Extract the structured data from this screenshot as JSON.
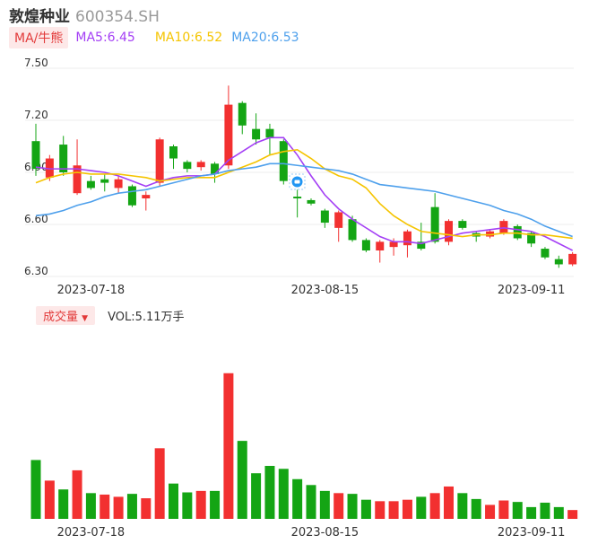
{
  "header": {
    "name": "敦煌种业",
    "code": "600354.SH"
  },
  "legend": {
    "ma_label": "MA/牛熊",
    "ma5": "MA5:6.45",
    "ma10": "MA10:6.52",
    "ma20": "MA20:6.53"
  },
  "volume_legend": {
    "label": "成交量",
    "value": "VOL:5.11万手"
  },
  "colors": {
    "up": "#f23030",
    "down": "#14a514",
    "ma5": "#a43ff5",
    "ma10": "#f5c400",
    "ma20": "#4ea0ec",
    "grid": "#eeeeee"
  },
  "chart_data": [
    {
      "type": "candlestick",
      "y_ticks": [
        "7.50",
        "7.20",
        "6.90",
        "6.60",
        "6.30"
      ],
      "ylim": [
        6.3,
        7.5
      ],
      "x_tick_labels": [
        {
          "index": 4,
          "label": "2023-07-18"
        },
        {
          "index": 21,
          "label": "2023-08-15"
        },
        {
          "index": 36,
          "label": "2023-09-11"
        }
      ],
      "candles": [
        {
          "o": 7.08,
          "c": 6.92,
          "h": 7.18,
          "l": 6.88
        },
        {
          "o": 6.87,
          "c": 6.98,
          "h": 7.0,
          "l": 6.85
        },
        {
          "o": 7.06,
          "c": 6.9,
          "h": 7.11,
          "l": 6.88
        },
        {
          "o": 6.78,
          "c": 6.94,
          "h": 7.09,
          "l": 6.77
        },
        {
          "o": 6.85,
          "c": 6.81,
          "h": 6.88,
          "l": 6.8
        },
        {
          "o": 6.86,
          "c": 6.84,
          "h": 6.89,
          "l": 6.79
        },
        {
          "o": 6.81,
          "c": 6.86,
          "h": 6.88,
          "l": 6.78
        },
        {
          "o": 6.82,
          "c": 6.71,
          "h": 6.83,
          "l": 6.7
        },
        {
          "o": 6.75,
          "c": 6.77,
          "h": 6.79,
          "l": 6.68
        },
        {
          "o": 6.84,
          "c": 7.09,
          "h": 7.1,
          "l": 6.82
        },
        {
          "o": 7.05,
          "c": 6.98,
          "h": 7.06,
          "l": 6.92
        },
        {
          "o": 6.96,
          "c": 6.92,
          "h": 6.97,
          "l": 6.9
        },
        {
          "o": 6.93,
          "c": 6.96,
          "h": 6.97,
          "l": 6.91
        },
        {
          "o": 6.95,
          "c": 6.89,
          "h": 6.96,
          "l": 6.84
        },
        {
          "o": 6.94,
          "c": 7.29,
          "h": 7.4,
          "l": 6.92
        },
        {
          "o": 7.3,
          "c": 7.17,
          "h": 7.31,
          "l": 7.12
        },
        {
          "o": 7.15,
          "c": 7.09,
          "h": 7.24,
          "l": 7.06
        },
        {
          "o": 7.15,
          "c": 7.1,
          "h": 7.18,
          "l": 7.0
        },
        {
          "o": 7.08,
          "c": 6.85,
          "h": 7.09,
          "l": 6.83
        },
        {
          "o": 6.76,
          "c": 6.75,
          "h": 6.8,
          "l": 6.64
        },
        {
          "o": 6.74,
          "c": 6.72,
          "h": 6.75,
          "l": 6.71
        },
        {
          "o": 6.68,
          "c": 6.61,
          "h": 6.69,
          "l": 6.58
        },
        {
          "o": 6.58,
          "c": 6.67,
          "h": 6.68,
          "l": 6.5
        },
        {
          "o": 6.63,
          "c": 6.51,
          "h": 6.65,
          "l": 6.5
        },
        {
          "o": 6.51,
          "c": 6.45,
          "h": 6.52,
          "l": 6.44
        },
        {
          "o": 6.45,
          "c": 6.5,
          "h": 6.51,
          "l": 6.38
        },
        {
          "o": 6.47,
          "c": 6.5,
          "h": 6.52,
          "l": 6.42
        },
        {
          "o": 6.48,
          "c": 6.56,
          "h": 6.57,
          "l": 6.41
        },
        {
          "o": 6.5,
          "c": 6.46,
          "h": 6.61,
          "l": 6.45
        },
        {
          "o": 6.7,
          "c": 6.5,
          "h": 6.78,
          "l": 6.49
        },
        {
          "o": 6.5,
          "c": 6.62,
          "h": 6.63,
          "l": 6.48
        },
        {
          "o": 6.62,
          "c": 6.58,
          "h": 6.63,
          "l": 6.57
        },
        {
          "o": 6.55,
          "c": 6.53,
          "h": 6.56,
          "l": 6.5
        },
        {
          "o": 6.53,
          "c": 6.56,
          "h": 6.57,
          "l": 6.52
        },
        {
          "o": 6.55,
          "c": 6.62,
          "h": 6.63,
          "l": 6.54
        },
        {
          "o": 6.59,
          "c": 6.52,
          "h": 6.6,
          "l": 6.51
        },
        {
          "o": 6.55,
          "c": 6.49,
          "h": 6.56,
          "l": 6.47
        },
        {
          "o": 6.46,
          "c": 6.41,
          "h": 6.47,
          "l": 6.4
        },
        {
          "o": 6.4,
          "c": 6.37,
          "h": 6.42,
          "l": 6.35
        },
        {
          "o": 6.37,
          "c": 6.43,
          "h": 6.44,
          "l": 6.36
        }
      ],
      "series": [
        {
          "name": "MA5",
          "values": [
            6.93,
            6.92,
            6.92,
            6.92,
            6.91,
            6.9,
            6.88,
            6.85,
            6.82,
            6.85,
            6.87,
            6.88,
            6.88,
            6.89,
            6.97,
            7.02,
            7.07,
            7.1,
            7.1,
            7.0,
            6.88,
            6.77,
            6.69,
            6.63,
            6.58,
            6.53,
            6.5,
            6.5,
            6.49,
            6.51,
            6.53,
            6.55,
            6.56,
            6.57,
            6.58,
            6.57,
            6.56,
            6.53,
            6.49,
            6.45
          ]
        },
        {
          "name": "MA10",
          "values": [
            6.84,
            6.87,
            6.89,
            6.9,
            6.89,
            6.89,
            6.89,
            6.88,
            6.87,
            6.85,
            6.86,
            6.87,
            6.87,
            6.87,
            6.9,
            6.93,
            6.96,
            7.0,
            7.02,
            7.03,
            6.98,
            6.92,
            6.88,
            6.86,
            6.81,
            6.72,
            6.65,
            6.6,
            6.56,
            6.55,
            6.54,
            6.53,
            6.54,
            6.54,
            6.55,
            6.55,
            6.54,
            6.54,
            6.53,
            6.52
          ]
        },
        {
          "name": "MA20",
          "values": [
            6.65,
            6.66,
            6.68,
            6.71,
            6.73,
            6.76,
            6.78,
            6.79,
            6.8,
            6.82,
            6.84,
            6.86,
            6.88,
            6.89,
            6.91,
            6.92,
            6.93,
            6.95,
            6.95,
            6.94,
            6.93,
            6.92,
            6.91,
            6.89,
            6.86,
            6.83,
            6.82,
            6.81,
            6.8,
            6.79,
            6.77,
            6.75,
            6.73,
            6.71,
            6.68,
            6.66,
            6.63,
            6.59,
            6.56,
            6.53
          ]
        }
      ]
    },
    {
      "type": "bar",
      "title": "成交量",
      "values": [
        4.0,
        2.6,
        2.0,
        3.3,
        1.75,
        1.65,
        1.5,
        1.7,
        1.4,
        4.8,
        2.4,
        1.8,
        1.9,
        1.9,
        9.9,
        5.3,
        3.1,
        3.6,
        3.4,
        2.7,
        2.3,
        1.9,
        1.75,
        1.7,
        1.3,
        1.2,
        1.2,
        1.3,
        1.5,
        1.75,
        2.2,
        1.75,
        1.35,
        0.95,
        1.25,
        1.15,
        0.8,
        1.1,
        0.8,
        0.6
      ],
      "colors": [
        "down",
        "up",
        "down",
        "up",
        "down",
        "up",
        "up",
        "down",
        "up",
        "up",
        "down",
        "down",
        "up",
        "down",
        "up",
        "down",
        "down",
        "down",
        "down",
        "down",
        "down",
        "down",
        "up",
        "down",
        "down",
        "up",
        "up",
        "up",
        "down",
        "up",
        "up",
        "down",
        "down",
        "up",
        "up",
        "down",
        "down",
        "down",
        "down",
        "up"
      ]
    }
  ]
}
